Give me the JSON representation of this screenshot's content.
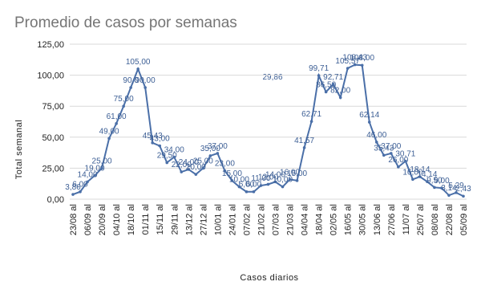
{
  "chart_data": {
    "type": "line",
    "title": "Promedio de casos por semanas",
    "ylabel": "Total semanal",
    "xlabel": "Casos diarios",
    "categories": [
      "23/08 al",
      null,
      "06/09 al",
      null,
      "20/09 al",
      null,
      "04/10 al",
      null,
      "18/10 al",
      null,
      "01/11 al",
      null,
      "15/11 al",
      null,
      "29/11 al",
      null,
      "13/12 al",
      null,
      "27/12 al",
      null,
      "10/01 al",
      null,
      "24/01 al",
      null,
      "07/02 al",
      null,
      "21/02 al",
      null,
      "07/03 al",
      null,
      "21/03 al",
      null,
      "04/04 al",
      null,
      "18/04 al",
      null,
      "02/05 al",
      null,
      "16/05 al",
      null,
      "30/05 al",
      null,
      "13/06 al",
      null,
      "27/06 al",
      null,
      "11/07 al",
      null,
      "25/07 al",
      null,
      "08/08 al",
      null,
      "22/08 al",
      null,
      "05/09 al"
    ],
    "series": [
      {
        "name": "Total semanal",
        "color": "#4a6fa8",
        "values": [
          3.86,
          6,
          14,
          19,
          25,
          49,
          61,
          75,
          90,
          105,
          90,
          45.43,
          43,
          29.5,
          34,
          22,
          24,
          20,
          25,
          35,
          37,
          23,
          15,
          10,
          6,
          6,
          11,
          12,
          14,
          10,
          16,
          15,
          41.57,
          62.71,
          99.71,
          86.5,
          92.71,
          82,
          105.57,
          108.43,
          108,
          62.14,
          46,
          35.43,
          37,
          26,
          30.71,
          16,
          18.14,
          14.14,
          9.5,
          9,
          3.14,
          5.29,
          2.43
        ],
        "value_labels": [
          "3,86",
          "6,00",
          "14,00",
          "19,00",
          "25,00",
          "49,00",
          "61,00",
          "75,00",
          "90,0",
          "105,00",
          "90,00",
          "45,43",
          "43,00",
          "29,50",
          "34,00",
          "22,00",
          "24,00",
          "20,00",
          "25,00",
          "35,00",
          "37,00",
          "23,00",
          "15,00",
          "10,00",
          "6,00",
          "6,00",
          "11,00",
          "12,00",
          "14,00",
          "10,00",
          "16,00",
          "15,00",
          "41,57",
          "62,71",
          "99,71",
          "86,50",
          "92,71",
          "82,00",
          "105,57",
          "108,43",
          "108,00",
          "62,14",
          "46,00",
          "35,43",
          "37,00",
          "26,00",
          "30,71",
          "16,00",
          "18,14",
          "14,14",
          "9,50",
          "9,00",
          "3,14",
          "5,29",
          "2,43"
        ]
      }
    ],
    "annotations": [
      "29,86"
    ],
    "ylim": [
      0,
      125
    ],
    "yticks": [
      {
        "value": 0,
        "label": "0,00"
      },
      {
        "value": 25,
        "label": "25,00"
      },
      {
        "value": 50,
        "label": "50,00"
      },
      {
        "value": 75,
        "label": "75,00"
      },
      {
        "value": 100,
        "label": "100,00"
      },
      {
        "value": 125,
        "label": "125,00"
      }
    ],
    "grid": true
  }
}
